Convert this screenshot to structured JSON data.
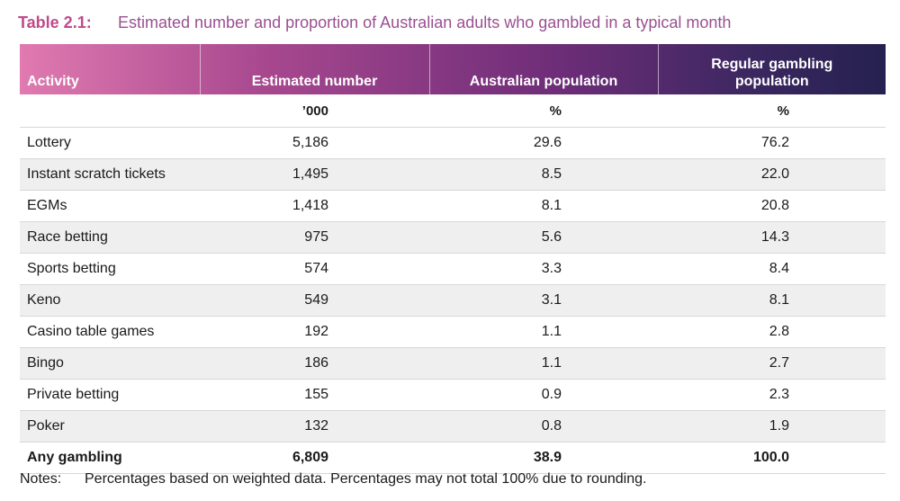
{
  "caption": {
    "label": "Table 2.1:",
    "title": "Estimated number and proportion of Australian adults who gambled in a typical month"
  },
  "table": {
    "headers": {
      "activity": "Activity",
      "estimated_number": "Estimated number",
      "australian_population": "Australian population",
      "regular_gambling_population_line1": "Regular gambling",
      "regular_gambling_population_line2": "population"
    },
    "units": {
      "activity": "",
      "estimated_number": "’000",
      "australian_population": "%",
      "regular_gambling_population": "%"
    },
    "rows": [
      {
        "activity": "Lottery",
        "estimated_number": "5,186",
        "australian_population": "29.6",
        "regular_gambling_population": "76.2"
      },
      {
        "activity": "Instant scratch tickets",
        "estimated_number": "1,495",
        "australian_population": "8.5",
        "regular_gambling_population": "22.0"
      },
      {
        "activity": "EGMs",
        "estimated_number": "1,418",
        "australian_population": "8.1",
        "regular_gambling_population": "20.8"
      },
      {
        "activity": "Race betting",
        "estimated_number": "975",
        "australian_population": "5.6",
        "regular_gambling_population": "14.3"
      },
      {
        "activity": "Sports betting",
        "estimated_number": "574",
        "australian_population": "3.3",
        "regular_gambling_population": "8.4"
      },
      {
        "activity": "Keno",
        "estimated_number": "549",
        "australian_population": "3.1",
        "regular_gambling_population": "8.1"
      },
      {
        "activity": "Casino table games",
        "estimated_number": "192",
        "australian_population": "1.1",
        "regular_gambling_population": "2.8"
      },
      {
        "activity": "Bingo",
        "estimated_number": "186",
        "australian_population": "1.1",
        "regular_gambling_population": "2.7"
      },
      {
        "activity": "Private betting",
        "estimated_number": "155",
        "australian_population": "0.9",
        "regular_gambling_population": "2.3"
      },
      {
        "activity": "Poker",
        "estimated_number": "132",
        "australian_population": "0.8",
        "regular_gambling_population": "1.9"
      }
    ],
    "total": {
      "activity": "Any gambling",
      "estimated_number": "6,809",
      "australian_population": "38.9",
      "regular_gambling_population": "100.0"
    }
  },
  "notes": {
    "label": "Notes:",
    "text": "Percentages based on weighted data. Percentages may not total 100% due to rounding."
  },
  "colors": {
    "caption_label": "#c04a8a",
    "caption_title": "#9a4f91",
    "header_gradient_start": "#e07ab0",
    "header_gradient_end": "#25214f",
    "stripe": "#efefef"
  }
}
